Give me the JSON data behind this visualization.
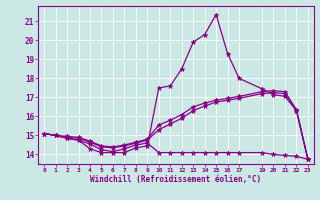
{
  "xlabel": "Windchill (Refroidissement éolien,°C)",
  "background_color": "#cce8e4",
  "line_color": "#880088",
  "xlim": [
    -0.5,
    23.5
  ],
  "ylim": [
    13.5,
    21.8
  ],
  "xticks": [
    0,
    1,
    2,
    3,
    4,
    5,
    6,
    7,
    8,
    9,
    10,
    11,
    12,
    13,
    14,
    15,
    16,
    17,
    19,
    20,
    21,
    22,
    23
  ],
  "yticks": [
    14,
    15,
    16,
    17,
    18,
    19,
    20,
    21
  ],
  "line1_x": [
    0,
    1,
    2,
    3,
    4,
    5,
    6,
    7,
    8,
    9,
    10,
    11,
    12,
    13,
    14,
    15,
    16,
    17,
    19,
    20,
    21,
    22,
    23
  ],
  "line1_y": [
    15.1,
    15.0,
    14.85,
    14.75,
    14.3,
    14.1,
    14.1,
    14.1,
    14.35,
    14.45,
    17.5,
    17.6,
    18.5,
    19.9,
    20.3,
    21.35,
    19.3,
    18.0,
    17.45,
    17.15,
    17.05,
    16.3,
    13.75
  ],
  "line2_x": [
    0,
    1,
    2,
    3,
    4,
    5,
    6,
    7,
    8,
    9,
    10,
    11,
    12,
    13,
    14,
    15,
    16,
    17,
    19,
    20,
    21,
    22,
    23
  ],
  "line2_y": [
    15.1,
    15.0,
    14.85,
    14.75,
    14.55,
    14.25,
    14.15,
    14.3,
    14.5,
    14.6,
    14.1,
    14.1,
    14.1,
    14.1,
    14.1,
    14.1,
    14.1,
    14.1,
    14.1,
    14.0,
    13.95,
    13.9,
    13.75
  ],
  "line3_x": [
    0,
    1,
    2,
    3,
    4,
    5,
    6,
    7,
    8,
    9,
    10,
    11,
    12,
    13,
    14,
    15,
    16,
    17,
    19,
    20,
    21,
    22,
    23
  ],
  "line3_y": [
    15.1,
    15.0,
    14.9,
    14.85,
    14.65,
    14.4,
    14.35,
    14.45,
    14.6,
    14.75,
    15.3,
    15.6,
    15.9,
    16.3,
    16.55,
    16.75,
    16.85,
    16.95,
    17.2,
    17.25,
    17.2,
    16.35,
    13.75
  ],
  "line4_x": [
    0,
    1,
    2,
    3,
    4,
    5,
    6,
    7,
    8,
    9,
    10,
    11,
    12,
    13,
    14,
    15,
    16,
    17,
    19,
    20,
    21,
    22,
    23
  ],
  "line4_y": [
    15.1,
    15.0,
    14.95,
    14.9,
    14.7,
    14.45,
    14.4,
    14.5,
    14.65,
    14.8,
    15.55,
    15.8,
    16.1,
    16.5,
    16.7,
    16.85,
    16.95,
    17.05,
    17.3,
    17.35,
    17.3,
    16.35,
    13.75
  ]
}
